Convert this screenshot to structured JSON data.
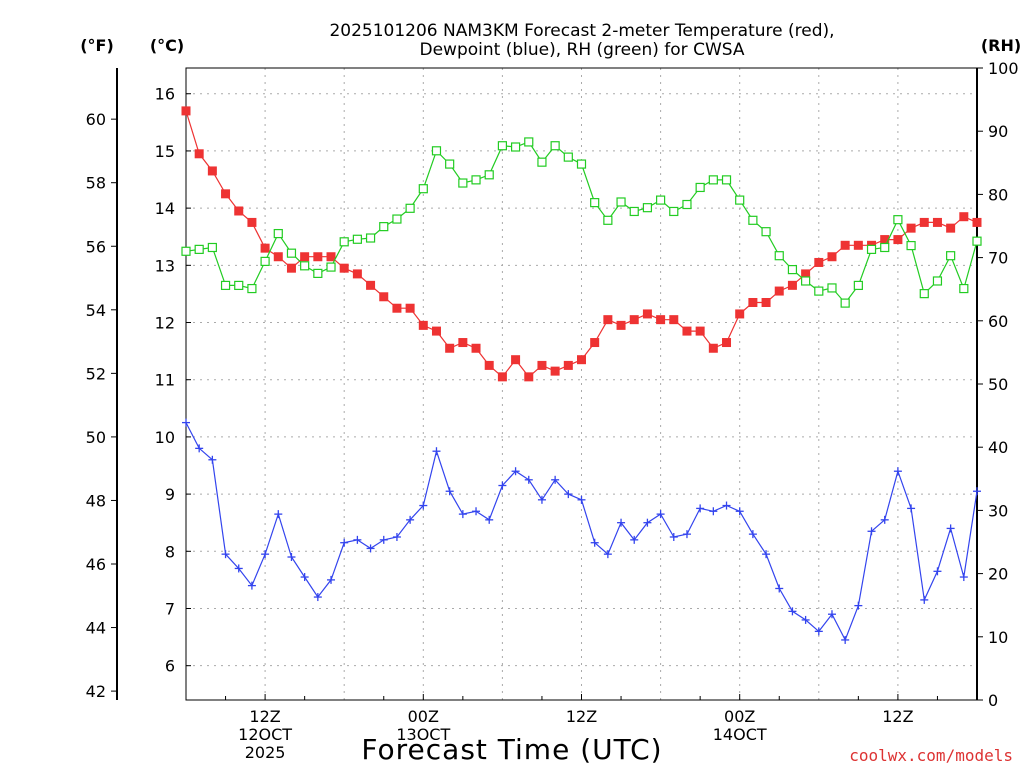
{
  "chart_data": {
    "type": "line",
    "title": "2025101206 NAM3KM Forecast 2-meter Temperature (red),",
    "subtitle": "Dewpoint (blue), RH (green) for CWSA",
    "xlabel": "Forecast Time (UTC)",
    "credit": "coolwx.com/models",
    "units": {
      "fahrenheit": "(°F)",
      "celsius": "(°C)",
      "rh": "(RH)"
    },
    "x_start_hour": 6,
    "x_step_hours": 1,
    "xlim": [
      6,
      66
    ],
    "x_ticks": [
      {
        "hour": 12,
        "lines": [
          "12Z",
          "12OCT",
          "2025"
        ]
      },
      {
        "hour": 24,
        "lines": [
          "00Z",
          "13OCT"
        ]
      },
      {
        "hour": 36,
        "lines": [
          "12Z"
        ]
      },
      {
        "hour": 48,
        "lines": [
          "00Z",
          "14OCT"
        ]
      },
      {
        "hour": 60,
        "lines": [
          "12Z"
        ]
      }
    ],
    "ylim_celsius": [
      5.4,
      16.45
    ],
    "yticks_celsius": [
      6,
      7,
      8,
      9,
      10,
      11,
      12,
      13,
      14,
      15,
      16
    ],
    "yticks_fahrenheit": [
      42,
      44,
      46,
      48,
      50,
      52,
      54,
      56,
      58,
      60
    ],
    "ylim_rh": [
      0,
      100
    ],
    "yticks_rh": [
      0,
      10,
      20,
      30,
      40,
      50,
      60,
      70,
      80,
      90,
      100
    ],
    "series": [
      {
        "name": "2-meter Temperature",
        "axis": "celsius",
        "color": "#ee3333",
        "marker": "filled-square",
        "values": [
          15.7,
          14.95,
          14.65,
          14.25,
          13.95,
          13.75,
          13.3,
          13.15,
          12.95,
          13.15,
          13.15,
          13.15,
          12.95,
          12.85,
          12.65,
          12.45,
          12.25,
          12.25,
          11.95,
          11.85,
          11.55,
          11.65,
          11.55,
          11.25,
          11.05,
          11.35,
          11.05,
          11.25,
          11.15,
          11.25,
          11.35,
          11.65,
          12.05,
          11.95,
          12.05,
          12.15,
          12.05,
          12.05,
          11.85,
          11.85,
          11.55,
          11.65,
          12.15,
          12.35,
          12.35,
          12.55,
          12.65,
          12.85,
          13.05,
          13.15,
          13.35,
          13.35,
          13.35,
          13.45,
          13.45,
          13.65,
          13.75,
          13.75,
          13.65,
          13.85,
          13.75
        ]
      },
      {
        "name": "Dewpoint",
        "axis": "celsius",
        "color": "#3344ee",
        "marker": "plus",
        "values": [
          10.25,
          9.8,
          9.6,
          7.95,
          7.7,
          7.4,
          7.95,
          8.65,
          7.9,
          7.55,
          7.2,
          7.5,
          8.15,
          8.2,
          8.05,
          8.2,
          8.25,
          8.55,
          8.8,
          9.75,
          9.05,
          8.65,
          8.7,
          8.55,
          9.15,
          9.4,
          9.25,
          8.9,
          9.25,
          9.0,
          8.9,
          8.15,
          7.95,
          8.5,
          8.2,
          8.5,
          8.65,
          8.25,
          8.3,
          8.75,
          8.7,
          8.8,
          8.7,
          8.3,
          7.95,
          7.35,
          6.95,
          6.8,
          6.6,
          6.9,
          6.45,
          7.05,
          8.35,
          8.55,
          9.4,
          8.75,
          7.15,
          7.65,
          8.4,
          7.55,
          9.05
        ]
      },
      {
        "name": "RH",
        "axis": "rh",
        "color": "#22cc22",
        "marker": "open-square",
        "values": [
          71,
          71.3,
          71.6,
          65.6,
          65.6,
          65.1,
          69.4,
          73.8,
          70.7,
          68.7,
          67.5,
          68.5,
          72.5,
          72.9,
          73.1,
          74.9,
          76.1,
          77.8,
          80.9,
          86.9,
          84.8,
          81.8,
          82.3,
          83.1,
          87.7,
          87.5,
          88.3,
          85.1,
          87.7,
          85.9,
          84.8,
          78.7,
          75.9,
          78.8,
          77.3,
          77.9,
          79.1,
          77.3,
          78.4,
          81.1,
          82.3,
          82.3,
          79.1,
          75.9,
          74.1,
          70.3,
          68.1,
          66.3,
          64.7,
          65.2,
          62.8,
          65.6,
          71.3,
          71.6,
          76.0,
          71.9,
          64.3,
          66.3,
          70.3,
          65.1,
          72.6
        ]
      }
    ]
  }
}
